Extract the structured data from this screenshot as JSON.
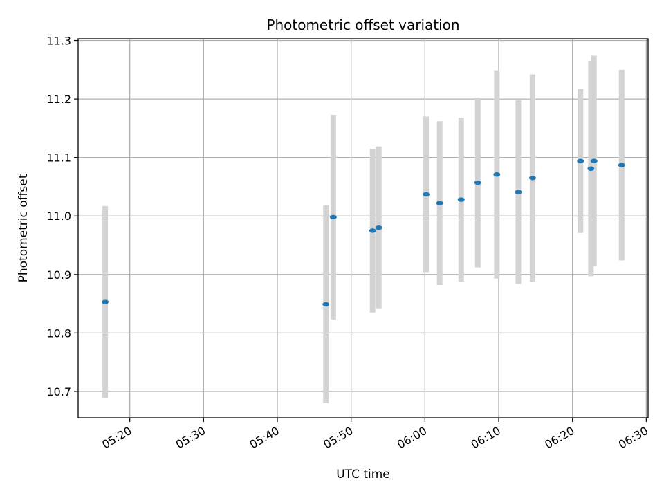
{
  "chart_data": {
    "type": "scatter",
    "title": "Photometric offset variation",
    "xlabel": "UTC time",
    "ylabel": "Photometric offset",
    "grid": true,
    "legend": "none",
    "colors": {
      "point": "#1f77b4",
      "errorbar": "#d3d3d3",
      "grid": "#b0b0b0"
    },
    "xlim": [
      "05:13:00",
      "06:30:15"
    ],
    "ylim": [
      10.655,
      11.303
    ],
    "x_ticks": [
      "05:20",
      "05:30",
      "05:40",
      "05:50",
      "06:00",
      "06:10",
      "06:20",
      "06:30"
    ],
    "y_ticks": [
      "10.7",
      "10.8",
      "10.9",
      "11.0",
      "11.1",
      "11.2",
      "11.3"
    ],
    "points": [
      {
        "x": "05:16:40",
        "y": 10.853,
        "err": 0.164
      },
      {
        "x": "05:46:35",
        "y": 10.849,
        "err": 0.169
      },
      {
        "x": "05:47:35",
        "y": 10.998,
        "err": 0.175
      },
      {
        "x": "05:52:55",
        "y": 10.975,
        "err": 0.14
      },
      {
        "x": "05:53:45",
        "y": 10.98,
        "err": 0.139
      },
      {
        "x": "06:00:10",
        "y": 11.037,
        "err": 0.133
      },
      {
        "x": "06:02:00",
        "y": 11.022,
        "err": 0.14
      },
      {
        "x": "06:04:55",
        "y": 11.028,
        "err": 0.14
      },
      {
        "x": "06:07:10",
        "y": 11.057,
        "err": 0.145
      },
      {
        "x": "06:09:45",
        "y": 11.071,
        "err": 0.178
      },
      {
        "x": "06:12:40",
        "y": 11.041,
        "err": 0.157
      },
      {
        "x": "06:14:35",
        "y": 11.065,
        "err": 0.177
      },
      {
        "x": "06:21:05",
        "y": 11.094,
        "err": 0.123
      },
      {
        "x": "06:22:30",
        "y": 11.081,
        "err": 0.184
      },
      {
        "x": "06:22:55",
        "y": 11.094,
        "err": 0.18
      },
      {
        "x": "06:26:40",
        "y": 11.087,
        "err": 0.163
      }
    ]
  }
}
